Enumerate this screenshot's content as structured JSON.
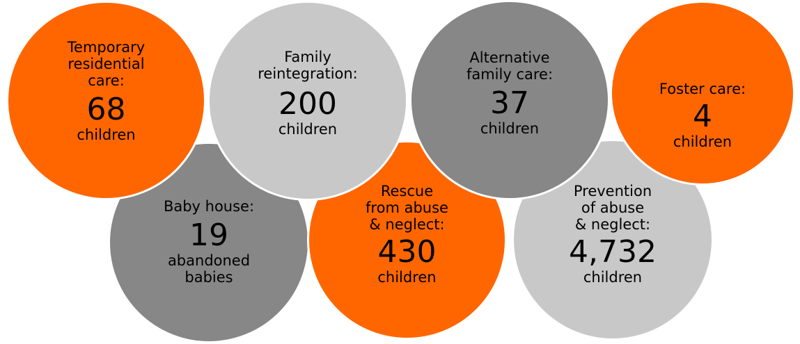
{
  "colors": {
    "orange": "#ff6600",
    "light_gray": "#c8c8c8",
    "dark_gray": "#878787"
  },
  "circles": [
    {
      "label": "Temporary\nresidential\ncare:",
      "number": "68",
      "unit": "children",
      "color": "orange"
    },
    {
      "label": "Family\nreintegration:",
      "number": "200",
      "unit": "children",
      "color": "light_gray"
    },
    {
      "label": "Alternative\nfamily care:",
      "number": "37",
      "unit": "children",
      "color": "dark_gray"
    },
    {
      "label": "Foster care:",
      "number": "4",
      "unit": "children",
      "color": "orange"
    },
    {
      "label": "Baby house:",
      "number": "19",
      "unit": "abandoned\nbabies",
      "color": "dark_gray"
    },
    {
      "label": "Rescue\nfrom abuse\n& neglect:",
      "number": "430",
      "unit": "children",
      "color": "orange"
    },
    {
      "label": "Prevention\nof abuse\n& neglect:",
      "number": "4,732",
      "unit": "children",
      "color": "light_gray"
    }
  ]
}
